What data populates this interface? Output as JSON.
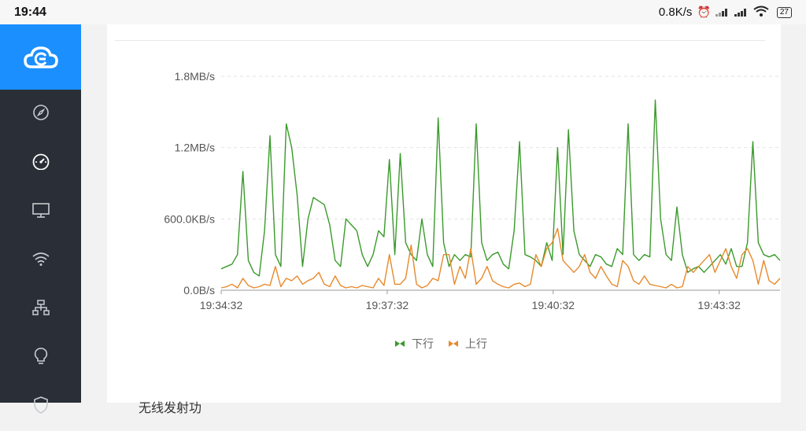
{
  "status_bar": {
    "time": "19:44",
    "net_speed": "0.8K/s",
    "battery": "27"
  },
  "sidebar": {
    "logo_icon": "cloud-logo-icon",
    "items": [
      {
        "icon": "compass-icon"
      },
      {
        "icon": "speedometer-icon"
      },
      {
        "icon": "monitor-icon"
      },
      {
        "icon": "wifi-icon"
      },
      {
        "icon": "network-icon"
      },
      {
        "icon": "lightbulb-icon"
      },
      {
        "icon": "shield-icon"
      }
    ]
  },
  "chart_data": {
    "type": "line",
    "x_ticks": [
      "19:34:32",
      "19:37:32",
      "19:40:32",
      "19:43:32"
    ],
    "y_ticks": [
      "0.0B/s",
      "600.0KB/s",
      "1.2MB/s",
      "1.8MB/s"
    ],
    "ylim": [
      0,
      1.8
    ],
    "grid": true,
    "legend_position": "bottom",
    "series": [
      {
        "name": "下行",
        "color": "#3a9a2b",
        "values": [
          0.18,
          0.2,
          0.22,
          0.3,
          1.0,
          0.25,
          0.15,
          0.12,
          0.5,
          1.3,
          0.3,
          0.2,
          1.4,
          1.2,
          0.8,
          0.2,
          0.6,
          0.78,
          0.75,
          0.72,
          0.55,
          0.25,
          0.2,
          0.6,
          0.55,
          0.5,
          0.3,
          0.2,
          0.3,
          0.5,
          0.45,
          1.1,
          0.3,
          1.15,
          0.4,
          0.3,
          0.25,
          0.6,
          0.3,
          0.2,
          1.45,
          0.4,
          0.2,
          0.3,
          0.25,
          0.3,
          0.28,
          1.4,
          0.4,
          0.25,
          0.3,
          0.32,
          0.22,
          0.18,
          0.5,
          1.25,
          0.3,
          0.28,
          0.25,
          0.2,
          0.4,
          0.25,
          1.2,
          0.3,
          1.35,
          0.5,
          0.3,
          0.25,
          0.2,
          0.3,
          0.28,
          0.22,
          0.2,
          0.35,
          0.3,
          1.4,
          0.3,
          0.25,
          0.3,
          0.28,
          1.6,
          0.6,
          0.3,
          0.25,
          0.7,
          0.3,
          0.15,
          0.18,
          0.2,
          0.15,
          0.2,
          0.25,
          0.3,
          0.22,
          0.35,
          0.2,
          0.2,
          0.4,
          1.25,
          0.4,
          0.3,
          0.28,
          0.3,
          0.25
        ]
      },
      {
        "name": "上行",
        "color": "#e8892b",
        "values": [
          0.02,
          0.03,
          0.05,
          0.02,
          0.1,
          0.04,
          0.02,
          0.03,
          0.05,
          0.04,
          0.2,
          0.03,
          0.1,
          0.08,
          0.12,
          0.05,
          0.08,
          0.1,
          0.15,
          0.05,
          0.03,
          0.12,
          0.04,
          0.02,
          0.03,
          0.02,
          0.04,
          0.03,
          0.02,
          0.1,
          0.04,
          0.3,
          0.05,
          0.05,
          0.1,
          0.38,
          0.05,
          0.02,
          0.04,
          0.1,
          0.08,
          0.3,
          0.3,
          0.05,
          0.2,
          0.1,
          0.35,
          0.05,
          0.1,
          0.2,
          0.08,
          0.05,
          0.03,
          0.02,
          0.05,
          0.06,
          0.03,
          0.05,
          0.3,
          0.2,
          0.35,
          0.4,
          0.52,
          0.25,
          0.2,
          0.15,
          0.2,
          0.3,
          0.15,
          0.1,
          0.2,
          0.12,
          0.05,
          0.03,
          0.25,
          0.2,
          0.08,
          0.05,
          0.12,
          0.05,
          0.04,
          0.03,
          0.02,
          0.05,
          0.02,
          0.03,
          0.2,
          0.15,
          0.2,
          0.25,
          0.3,
          0.15,
          0.25,
          0.35,
          0.2,
          0.1,
          0.3,
          0.35,
          0.25,
          0.05,
          0.25,
          0.08,
          0.05,
          0.1
        ]
      }
    ]
  },
  "section": {
    "title": "无线发射功"
  }
}
